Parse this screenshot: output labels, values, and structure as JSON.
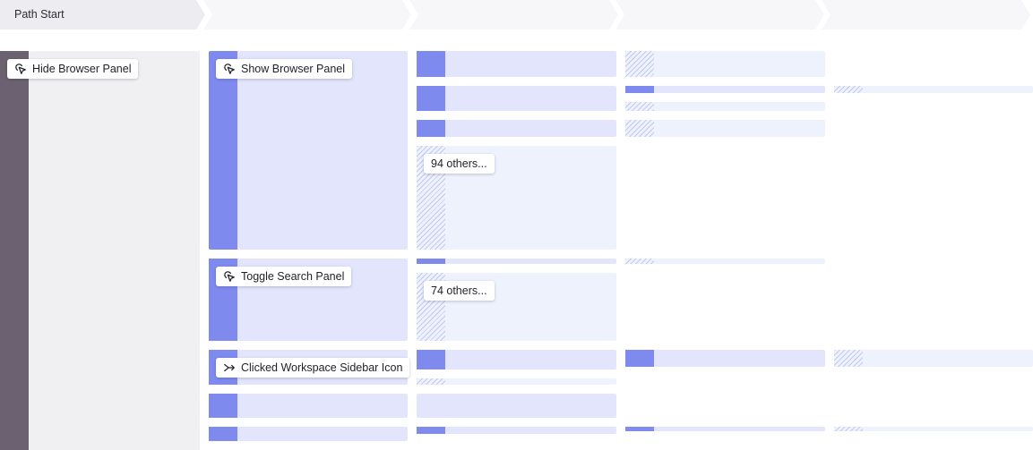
{
  "header": {
    "steps": [
      {
        "label": "Path Start"
      },
      {
        "label": ""
      },
      {
        "label": ""
      },
      {
        "label": ""
      },
      {
        "label": ""
      }
    ]
  },
  "nodes": {
    "start": {
      "label": "Hide Browser Panel",
      "icon": "click-icon"
    },
    "step2": [
      {
        "label": "Show Browser Panel",
        "icon": "click-icon"
      },
      {
        "label": "Toggle Search Panel",
        "icon": "click-icon"
      },
      {
        "label": "Clicked Workspace Sidebar Icon",
        "icon": "arrow-merge-icon"
      }
    ],
    "others": [
      {
        "label": "94 others..."
      },
      {
        "label": "74 others..."
      }
    ]
  },
  "colors": {
    "accent": "#7f8aef",
    "lavender": "#e2e5fb",
    "pale": "#eef2fd",
    "dark": "#6b6170",
    "gray": "#f0eff2"
  }
}
